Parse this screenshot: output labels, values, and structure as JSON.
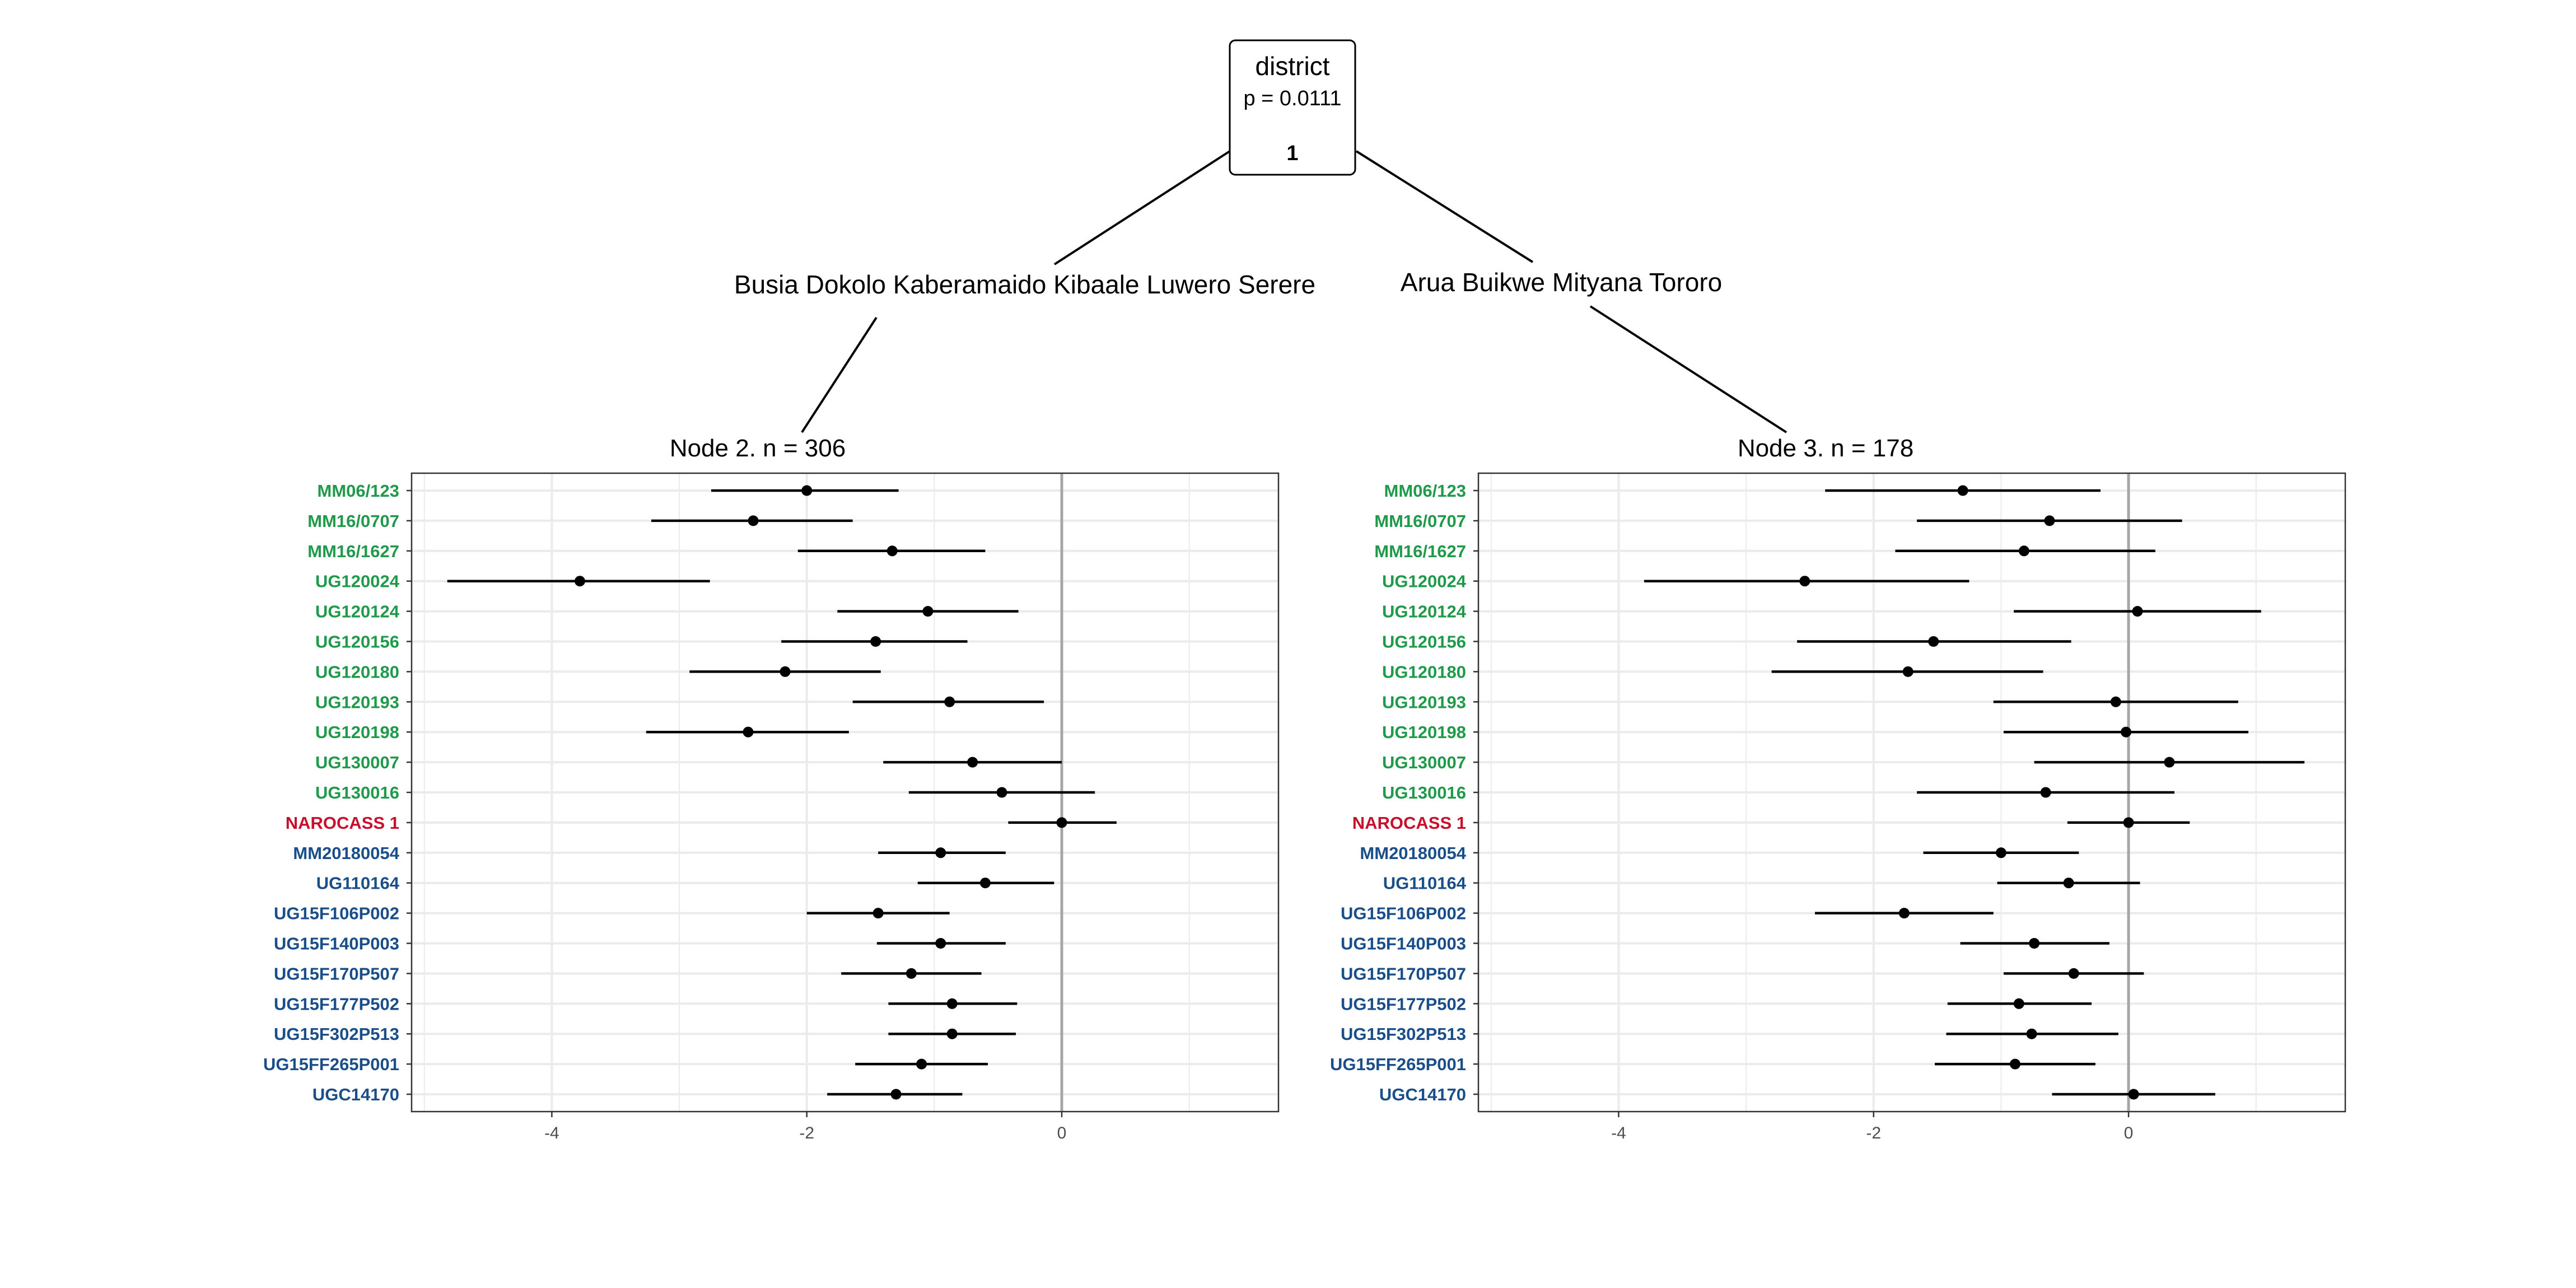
{
  "tree": {
    "root": {
      "variable": "district",
      "p_value": "p = 0.0111",
      "id": "1"
    },
    "left_edge_label": "Busia Dokolo Kaberamaido Kibaale Luwero Serere",
    "right_edge_label": "Arua Buikwe Mityana Tororo"
  },
  "colors": {
    "group_green": "#1f9a4a",
    "group_red": "#c8102e",
    "group_blue": "#1a4e8a",
    "point": "#000000",
    "zero_line": "#a6a6a6",
    "grid": "#ebebeb",
    "panel_border": "#333333"
  },
  "chart_data": [
    {
      "type": "forest",
      "title": "Node 2. n = 306",
      "xlim": [
        -5.1,
        1.7
      ],
      "x_ticks": [
        -4,
        -2,
        0
      ],
      "grid": true,
      "reference_line": 0,
      "rows": [
        {
          "label": "MM06/123",
          "group": "green",
          "est": -2.0,
          "lo": -2.75,
          "hi": -1.28
        },
        {
          "label": "MM16/0707",
          "group": "green",
          "est": -2.42,
          "lo": -3.22,
          "hi": -1.64
        },
        {
          "label": "MM16/1627",
          "group": "green",
          "est": -1.33,
          "lo": -2.07,
          "hi": -0.6
        },
        {
          "label": "UG120024",
          "group": "green",
          "est": -3.78,
          "lo": -4.82,
          "hi": -2.76
        },
        {
          "label": "UG120124",
          "group": "green",
          "est": -1.05,
          "lo": -1.76,
          "hi": -0.34
        },
        {
          "label": "UG120156",
          "group": "green",
          "est": -1.46,
          "lo": -2.2,
          "hi": -0.74
        },
        {
          "label": "UG120180",
          "group": "green",
          "est": -2.17,
          "lo": -2.92,
          "hi": -1.42
        },
        {
          "label": "UG120193",
          "group": "green",
          "est": -0.88,
          "lo": -1.64,
          "hi": -0.14
        },
        {
          "label": "UG120198",
          "group": "green",
          "est": -2.46,
          "lo": -3.26,
          "hi": -1.67
        },
        {
          "label": "UG130007",
          "group": "green",
          "est": -0.7,
          "lo": -1.4,
          "hi": 0.0
        },
        {
          "label": "UG130016",
          "group": "green",
          "est": -0.47,
          "lo": -1.2,
          "hi": 0.26
        },
        {
          "label": "NAROCASS 1",
          "group": "red",
          "est": 0.0,
          "lo": -0.42,
          "hi": 0.43
        },
        {
          "label": "MM20180054",
          "group": "blue",
          "est": -0.95,
          "lo": -1.44,
          "hi": -0.44
        },
        {
          "label": "UG110164",
          "group": "blue",
          "est": -0.6,
          "lo": -1.13,
          "hi": -0.06
        },
        {
          "label": "UG15F106P002",
          "group": "blue",
          "est": -1.44,
          "lo": -2.0,
          "hi": -0.88
        },
        {
          "label": "UG15F140P003",
          "group": "blue",
          "est": -0.95,
          "lo": -1.45,
          "hi": -0.44
        },
        {
          "label": "UG15F170P507",
          "group": "blue",
          "est": -1.18,
          "lo": -1.73,
          "hi": -0.63
        },
        {
          "label": "UG15F177P502",
          "group": "blue",
          "est": -0.86,
          "lo": -1.36,
          "hi": -0.35
        },
        {
          "label": "UG15F302P513",
          "group": "blue",
          "est": -0.86,
          "lo": -1.36,
          "hi": -0.36
        },
        {
          "label": "UG15FF265P001",
          "group": "blue",
          "est": -1.1,
          "lo": -1.62,
          "hi": -0.58
        },
        {
          "label": "UGC14170",
          "group": "blue",
          "est": -1.3,
          "lo": -1.84,
          "hi": -0.78
        }
      ]
    },
    {
      "type": "forest",
      "title": "Node 3. n = 178",
      "xlim": [
        -5.1,
        1.7
      ],
      "x_ticks": [
        -4,
        -2,
        0
      ],
      "grid": true,
      "reference_line": 0,
      "rows": [
        {
          "label": "MM06/123",
          "group": "green",
          "est": -1.3,
          "lo": -2.38,
          "hi": -0.22
        },
        {
          "label": "MM16/0707",
          "group": "green",
          "est": -0.62,
          "lo": -1.66,
          "hi": 0.42
        },
        {
          "label": "MM16/1627",
          "group": "green",
          "est": -0.82,
          "lo": -1.83,
          "hi": 0.21
        },
        {
          "label": "UG120024",
          "group": "green",
          "est": -2.54,
          "lo": -3.8,
          "hi": -1.25
        },
        {
          "label": "UG120124",
          "group": "green",
          "est": 0.07,
          "lo": -0.9,
          "hi": 1.04
        },
        {
          "label": "UG120156",
          "group": "green",
          "est": -1.53,
          "lo": -2.6,
          "hi": -0.45
        },
        {
          "label": "UG120180",
          "group": "green",
          "est": -1.73,
          "lo": -2.8,
          "hi": -0.67
        },
        {
          "label": "UG120193",
          "group": "green",
          "est": -0.1,
          "lo": -1.06,
          "hi": 0.86
        },
        {
          "label": "UG120198",
          "group": "green",
          "est": -0.02,
          "lo": -0.98,
          "hi": 0.94
        },
        {
          "label": "UG130007",
          "group": "green",
          "est": 0.32,
          "lo": -0.74,
          "hi": 1.38
        },
        {
          "label": "UG130016",
          "group": "green",
          "est": -0.65,
          "lo": -1.66,
          "hi": 0.36
        },
        {
          "label": "NAROCASS 1",
          "group": "red",
          "est": 0.0,
          "lo": -0.48,
          "hi": 0.48
        },
        {
          "label": "MM20180054",
          "group": "blue",
          "est": -1.0,
          "lo": -1.61,
          "hi": -0.39
        },
        {
          "label": "UG110164",
          "group": "blue",
          "est": -0.47,
          "lo": -1.03,
          "hi": 0.09
        },
        {
          "label": "UG15F106P002",
          "group": "blue",
          "est": -1.76,
          "lo": -2.46,
          "hi": -1.06
        },
        {
          "label": "UG15F140P003",
          "group": "blue",
          "est": -0.74,
          "lo": -1.32,
          "hi": -0.15
        },
        {
          "label": "UG15F170P507",
          "group": "blue",
          "est": -0.43,
          "lo": -0.98,
          "hi": 0.12
        },
        {
          "label": "UG15F177P502",
          "group": "blue",
          "est": -0.86,
          "lo": -1.42,
          "hi": -0.29
        },
        {
          "label": "UG15F302P513",
          "group": "blue",
          "est": -0.76,
          "lo": -1.43,
          "hi": -0.08
        },
        {
          "label": "UG15FF265P001",
          "group": "blue",
          "est": -0.89,
          "lo": -1.52,
          "hi": -0.26
        },
        {
          "label": "UGC14170",
          "group": "blue",
          "est": 0.04,
          "lo": -0.6,
          "hi": 0.68
        }
      ]
    }
  ]
}
